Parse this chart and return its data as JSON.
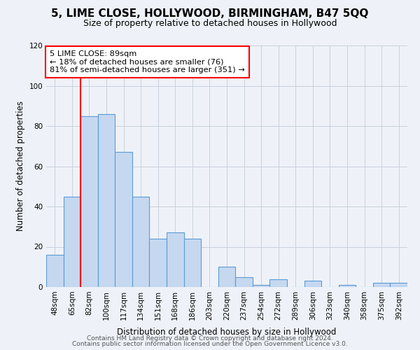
{
  "title": "5, LIME CLOSE, HOLLYWOOD, BIRMINGHAM, B47 5QQ",
  "subtitle": "Size of property relative to detached houses in Hollywood",
  "xlabel": "Distribution of detached houses by size in Hollywood",
  "ylabel": "Number of detached properties",
  "bar_labels": [
    "48sqm",
    "65sqm",
    "82sqm",
    "100sqm",
    "117sqm",
    "134sqm",
    "151sqm",
    "168sqm",
    "186sqm",
    "203sqm",
    "220sqm",
    "237sqm",
    "254sqm",
    "272sqm",
    "289sqm",
    "306sqm",
    "323sqm",
    "340sqm",
    "358sqm",
    "375sqm",
    "392sqm"
  ],
  "bar_values": [
    16,
    45,
    85,
    86,
    67,
    45,
    24,
    27,
    24,
    0,
    10,
    5,
    1,
    4,
    0,
    3,
    0,
    1,
    0,
    2,
    2
  ],
  "ylim": [
    0,
    120
  ],
  "yticks": [
    0,
    20,
    40,
    60,
    80,
    100,
    120
  ],
  "bar_color": "#c5d8f0",
  "bar_edge_color": "#5b9bd5",
  "red_line_index": 2,
  "annotation_box_text": "5 LIME CLOSE: 89sqm\n← 18% of detached houses are smaller (76)\n81% of semi-detached houses are larger (351) →",
  "footer_line1": "Contains HM Land Registry data © Crown copyright and database right 2024.",
  "footer_line2": "Contains public sector information licensed under the Open Government Licence v3.0.",
  "background_color": "#eef2f8",
  "title_fontsize": 11,
  "subtitle_fontsize": 9,
  "ylabel_fontsize": 8.5,
  "xlabel_fontsize": 8.5,
  "tick_fontsize": 7.5,
  "footer_fontsize": 6.5
}
